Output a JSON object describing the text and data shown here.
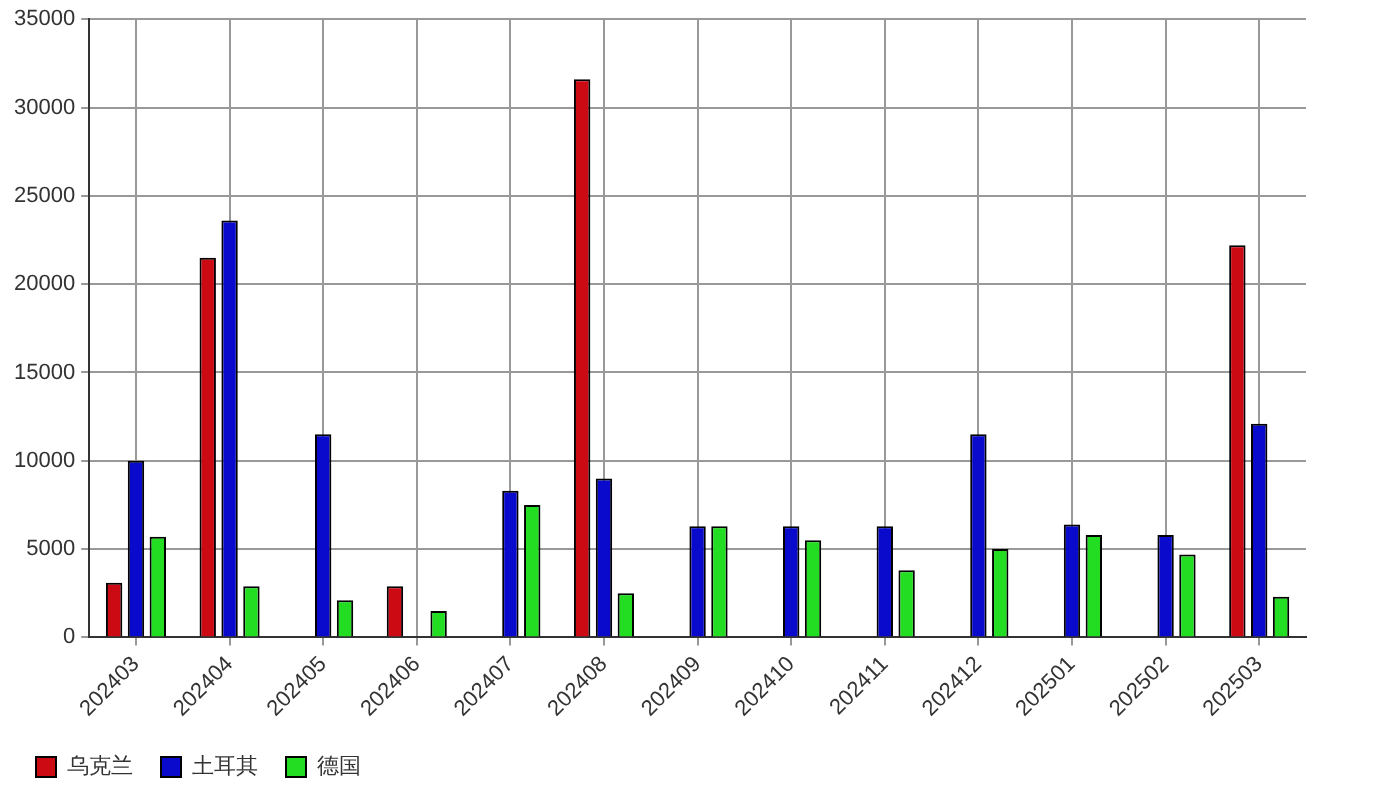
{
  "chart_data": {
    "type": "bar",
    "categories": [
      "202403",
      "202404",
      "202405",
      "202406",
      "202407",
      "202408",
      "202409",
      "202410",
      "202411",
      "202412",
      "202501",
      "202502",
      "202503"
    ],
    "series": [
      {
        "name": "乌克兰",
        "color": "#cc0a14",
        "values": [
          3100,
          21500,
          null,
          2900,
          null,
          31600,
          null,
          null,
          null,
          null,
          null,
          null,
          22200
        ]
      },
      {
        "name": "土耳其",
        "color": "#0a0acc",
        "values": [
          10000,
          23600,
          11500,
          null,
          8300,
          9000,
          6300,
          6300,
          6300,
          11500,
          6400,
          5800,
          12100
        ]
      },
      {
        "name": "德国",
        "color": "#22dd22",
        "values": [
          5700,
          2900,
          2100,
          1500,
          7500,
          2500,
          6300,
          5500,
          3800,
          5000,
          5800,
          4700,
          2300
        ]
      }
    ],
    "ylim": [
      0,
      35000
    ],
    "yticks": [
      0,
      5000,
      10000,
      15000,
      20000,
      25000,
      30000,
      35000
    ],
    "grid": true,
    "legend": "bottom left"
  }
}
